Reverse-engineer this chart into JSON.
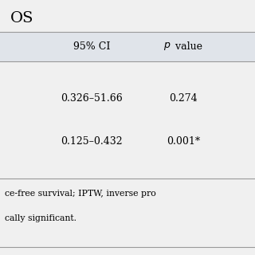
{
  "title": "OS",
  "header_row": [
    "95% CI",
    "p value"
  ],
  "data_rows": [
    [
      "0.326–51.66",
      "0.274"
    ],
    [
      "0.125–0.432",
      "0.001*"
    ]
  ],
  "footnote_line1": "ce-free survival; IPTW, inverse pro",
  "footnote_line2": "cally significant.",
  "bg_color": "#f0f0f0",
  "header_bg": "#e0e4ea",
  "line_color": "#999999",
  "text_color": "#000000",
  "font_size": 9,
  "header_font_size": 9,
  "title_font_size": 14
}
